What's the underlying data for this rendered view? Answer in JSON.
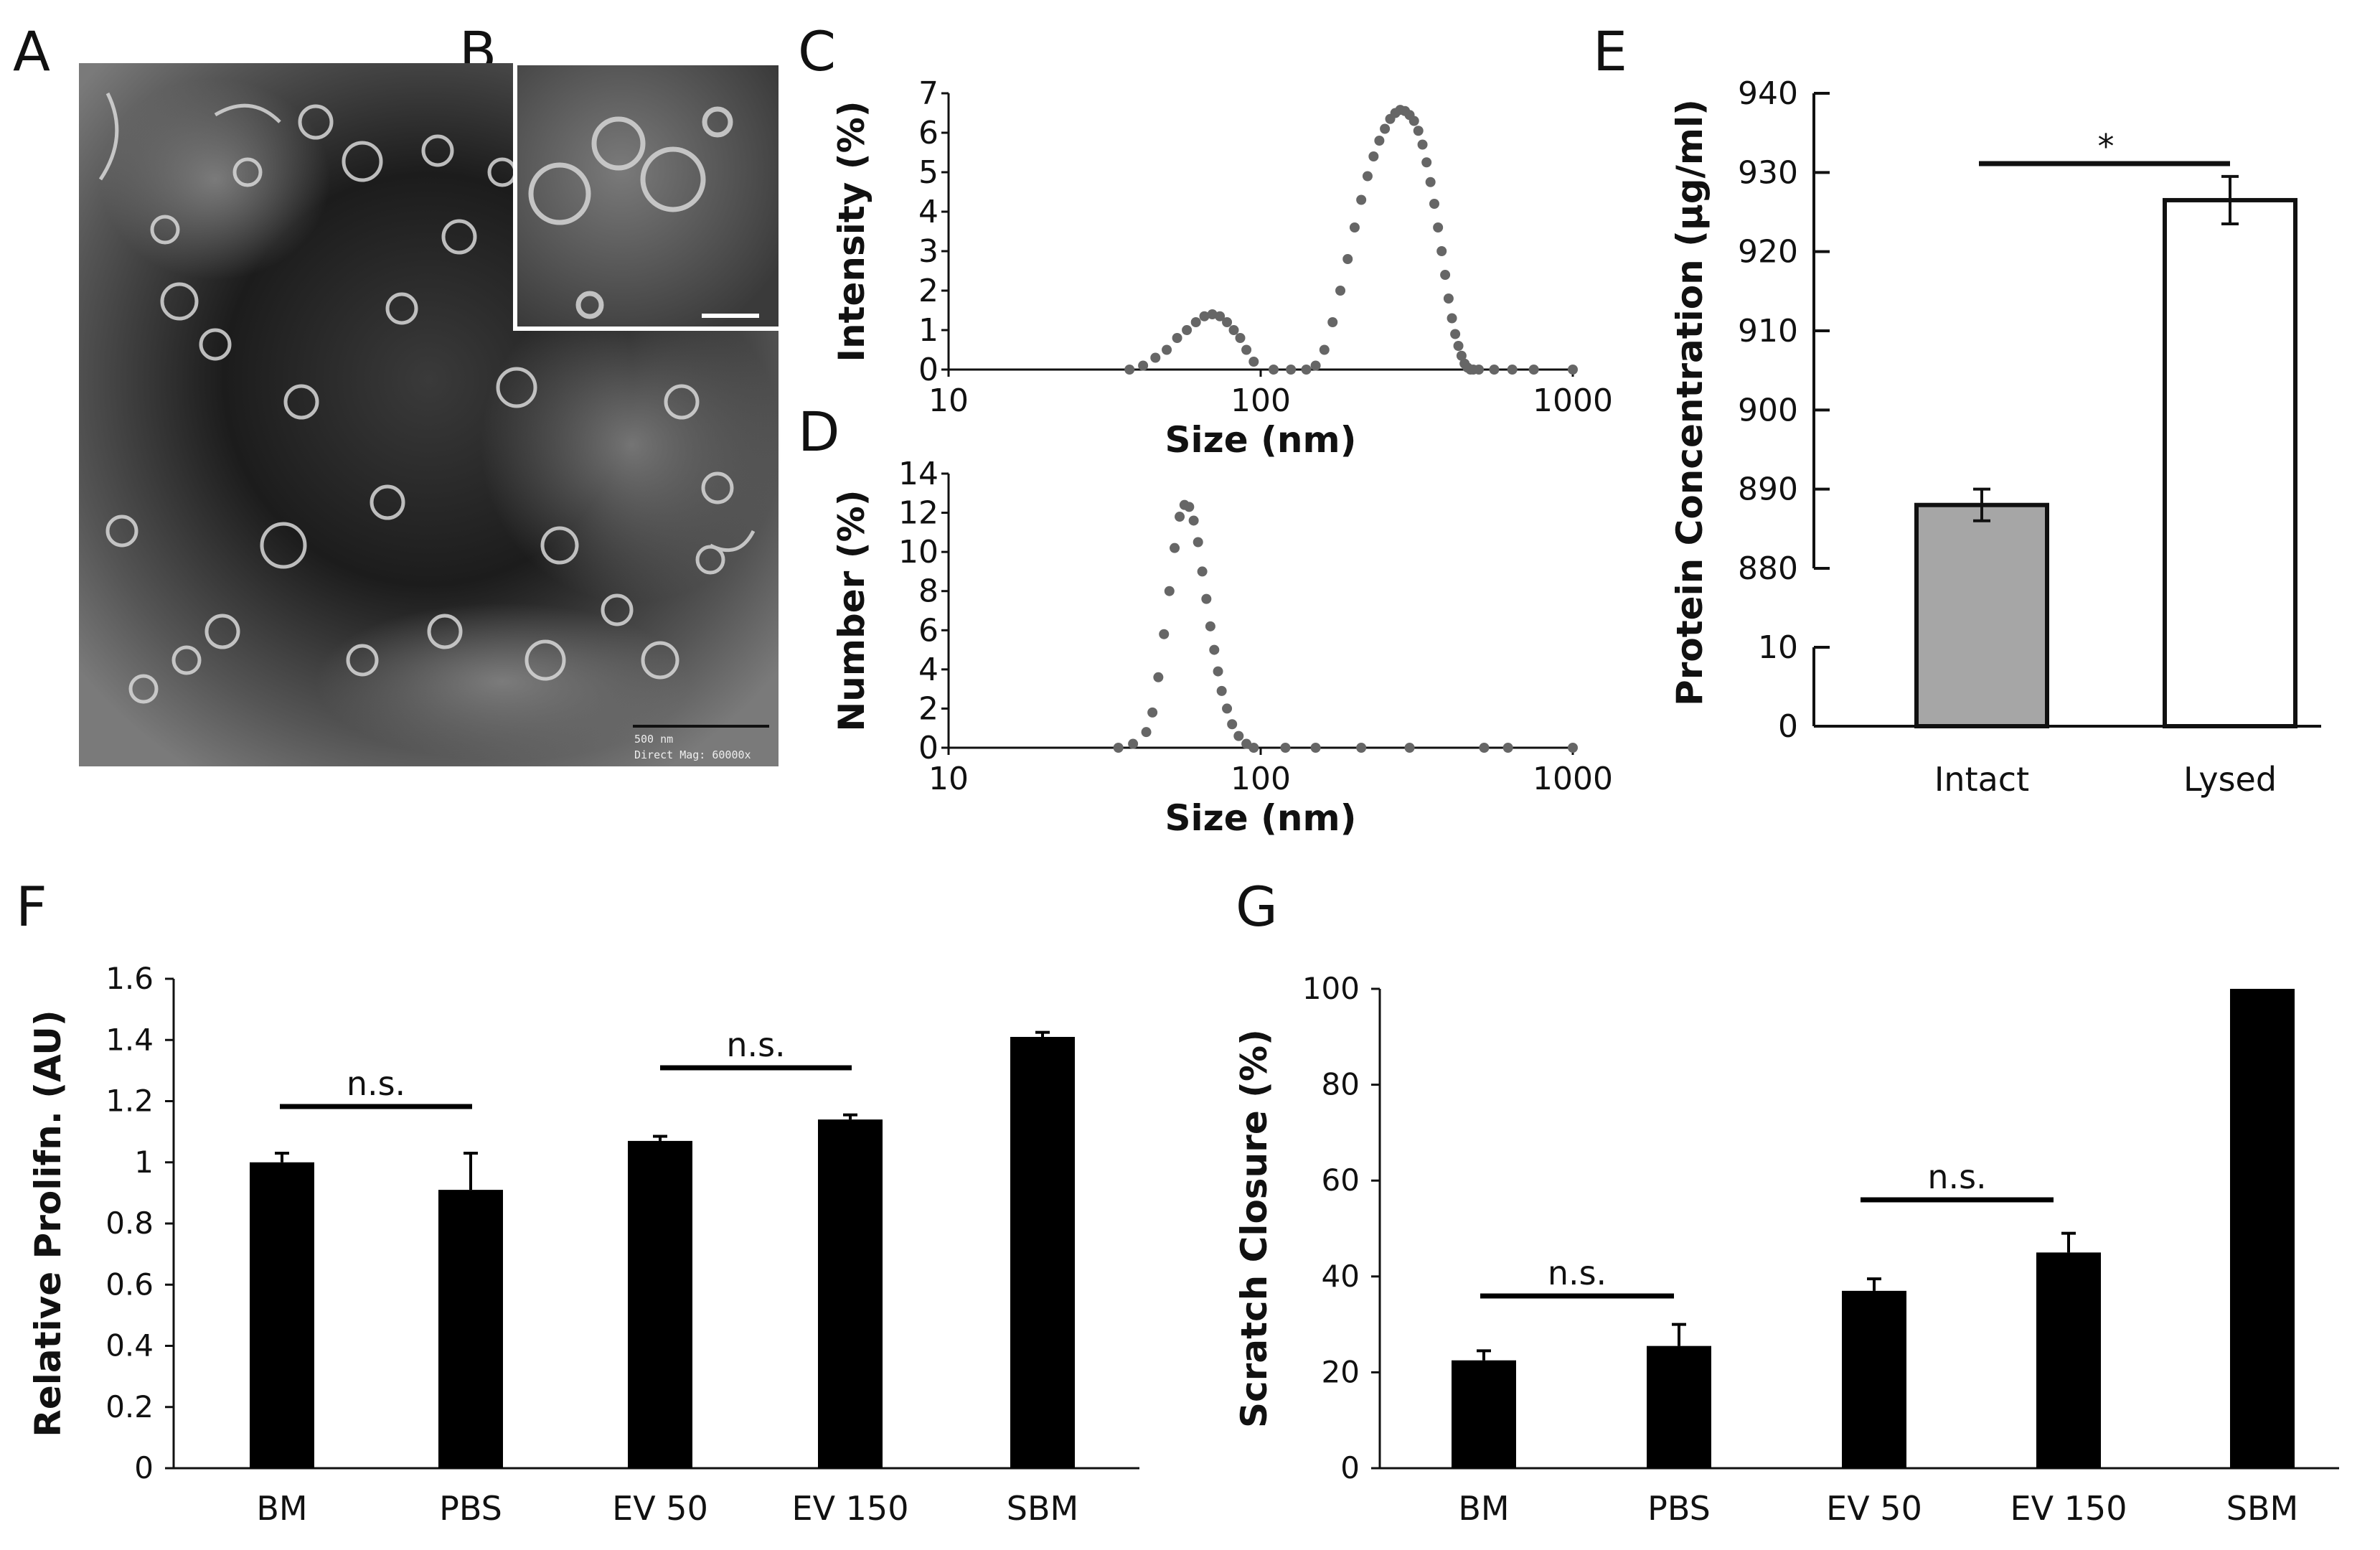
{
  "panel_labels": {
    "a": "A",
    "b": "B",
    "c": "C",
    "d": "D",
    "e": "E",
    "f": "F",
    "g": "G"
  },
  "micrograph": {
    "scale_text": "500 nm",
    "mag_text": "Direct Mag: 60000x"
  },
  "chart_data": [
    {
      "id": "C",
      "type": "scatter",
      "xscale": "log",
      "xlim": [
        10,
        1000
      ],
      "ylim": [
        0,
        7
      ],
      "xticks": [
        "10",
        "100",
        "1000"
      ],
      "yticks": [
        "0",
        "1",
        "2",
        "3",
        "4",
        "5",
        "6",
        "7"
      ],
      "xlabel": "Size (nm)",
      "ylabel": "Intensity (%)",
      "series": [
        {
          "name": "Intensity",
          "x": [
            38,
            42,
            46,
            50,
            54,
            58,
            62,
            66,
            70,
            74,
            78,
            82,
            86,
            90,
            95,
            110,
            125,
            140,
            150,
            160,
            170,
            180,
            190,
            200,
            210,
            220,
            230,
            240,
            250,
            260,
            270,
            280,
            290,
            300,
            310,
            320,
            330,
            340,
            350,
            360,
            370,
            380,
            390,
            400,
            410,
            420,
            430,
            440,
            450,
            460,
            470,
            480,
            500,
            560,
            640,
            750,
            1000
          ],
          "y": [
            0,
            0.1,
            0.3,
            0.5,
            0.8,
            1.0,
            1.2,
            1.35,
            1.4,
            1.35,
            1.2,
            1.0,
            0.8,
            0.5,
            0.2,
            0,
            0,
            0,
            0.1,
            0.5,
            1.2,
            2.0,
            2.8,
            3.6,
            4.3,
            4.9,
            5.4,
            5.8,
            6.1,
            6.35,
            6.5,
            6.58,
            6.55,
            6.45,
            6.3,
            6.05,
            5.7,
            5.25,
            4.75,
            4.2,
            3.6,
            3.0,
            2.4,
            1.8,
            1.3,
            0.9,
            0.6,
            0.35,
            0.15,
            0.05,
            0,
            0,
            0,
            0,
            0,
            0,
            0
          ]
        }
      ]
    },
    {
      "id": "D",
      "type": "scatter",
      "xscale": "log",
      "xlim": [
        10,
        1000
      ],
      "ylim": [
        0,
        14
      ],
      "xticks": [
        "10",
        "100",
        "1000"
      ],
      "yticks": [
        "0",
        "2",
        "4",
        "6",
        "8",
        "10",
        "12",
        "14"
      ],
      "xlabel": "Size (nm)",
      "ylabel": "Number (%)",
      "series": [
        {
          "name": "Number",
          "x": [
            35,
            39,
            43,
            45,
            47,
            49,
            51,
            53,
            55,
            57,
            59,
            61,
            63,
            65,
            67,
            69,
            71,
            73,
            75,
            78,
            81,
            85,
            90,
            95,
            120,
            150,
            210,
            300,
            520,
            620,
            1000
          ],
          "y": [
            0,
            0.2,
            0.8,
            1.8,
            3.6,
            5.8,
            8.0,
            10.2,
            11.8,
            12.4,
            12.3,
            11.6,
            10.5,
            9.0,
            7.6,
            6.2,
            5.0,
            3.9,
            2.9,
            2.0,
            1.2,
            0.6,
            0.2,
            0,
            0,
            0,
            0,
            0,
            0,
            0,
            0
          ]
        }
      ]
    },
    {
      "id": "E",
      "type": "bar",
      "categories": [
        "Intact",
        "Lysed"
      ],
      "values": [
        888,
        926.5
      ],
      "errors": [
        2,
        3
      ],
      "colors": [
        "#a6a6a6",
        "#ffffff"
      ],
      "yticks_upper": [
        "880",
        "890",
        "900",
        "910",
        "920",
        "930",
        "940"
      ],
      "yticks_lower": [
        "0",
        "10"
      ],
      "ylabel": "Protein Concentration (μg/ml)",
      "axis_break": [
        10,
        880
      ],
      "significance": [
        {
          "from": "Intact",
          "to": "Lysed",
          "label": "*"
        }
      ]
    },
    {
      "id": "F",
      "type": "bar",
      "categories": [
        "BM",
        "PBS",
        "EV 50",
        "EV 150",
        "SBM"
      ],
      "values": [
        1.0,
        0.91,
        1.07,
        1.14,
        1.41
      ],
      "errors": [
        0.03,
        0.12,
        0.015,
        0.015,
        0.015
      ],
      "ylim": [
        0,
        1.6
      ],
      "yticks": [
        "0",
        "0.2",
        "0.4",
        "0.6",
        "0.8",
        "1",
        "1.2",
        "1.4",
        "1.6"
      ],
      "ylabel": "Relative Prolifn. (AU)",
      "significance": [
        {
          "from": "BM",
          "to": "PBS",
          "label": "n.s."
        },
        {
          "from": "EV 50",
          "to": "EV 150",
          "label": "n.s."
        }
      ]
    },
    {
      "id": "G",
      "type": "bar",
      "categories": [
        "BM",
        "PBS",
        "EV 50",
        "EV 150",
        "SBM"
      ],
      "values": [
        22.5,
        25.5,
        37,
        45,
        100
      ],
      "errors": [
        2,
        4.5,
        2.5,
        4,
        0
      ],
      "ylim": [
        0,
        100
      ],
      "yticks": [
        "0",
        "20",
        "40",
        "60",
        "80",
        "100"
      ],
      "ylabel": "Scratch Closure (%)",
      "significance": [
        {
          "from": "BM",
          "to": "PBS",
          "label": "n.s."
        },
        {
          "from": "EV 50",
          "to": "EV 150",
          "label": "n.s."
        }
      ]
    }
  ]
}
